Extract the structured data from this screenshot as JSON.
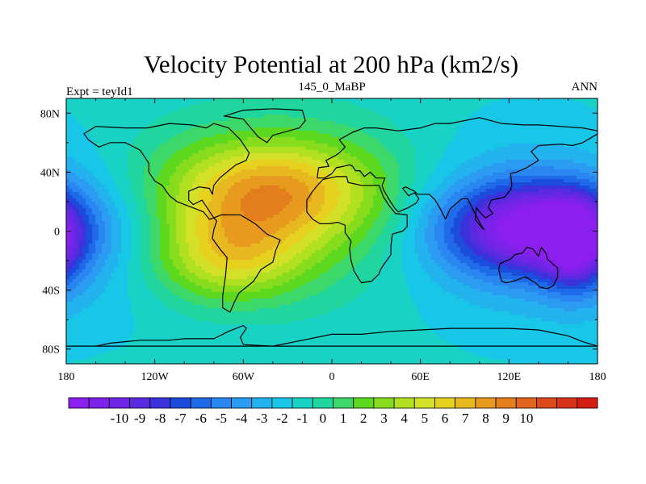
{
  "chart_data": {
    "type": "heatmap",
    "title": "Velocity Potential at 200 hPa (km2/s)",
    "left_string": "Expt = teyId1",
    "center_string": "145_0_MaBP",
    "right_string": "ANN",
    "xlim": [
      -180,
      180
    ],
    "ylim": [
      -90,
      90
    ],
    "x_ticks": [
      {
        "value": -180,
        "label": "180"
      },
      {
        "value": -120,
        "label": "120W"
      },
      {
        "value": -60,
        "label": "60W"
      },
      {
        "value": 0,
        "label": "0"
      },
      {
        "value": 60,
        "label": "60E"
      },
      {
        "value": 120,
        "label": "120E"
      },
      {
        "value": 180,
        "label": "180"
      }
    ],
    "y_ticks": [
      {
        "value": 80,
        "label": "80N"
      },
      {
        "value": 40,
        "label": "40N"
      },
      {
        "value": 0,
        "label": "0"
      },
      {
        "value": -40,
        "label": "40S"
      },
      {
        "value": -80,
        "label": "80S"
      }
    ],
    "field": {
      "background": 0.3,
      "centers": [
        {
          "lon": -45,
          "lat": 25,
          "amplitude": 7.5,
          "sigma_lon": 50,
          "sigma_lat": 24
        },
        {
          "lon": -70,
          "lat": -18,
          "amplitude": 6.5,
          "sigma_lon": 38,
          "sigma_lat": 22
        },
        {
          "lon": -55,
          "lat": 45,
          "amplitude": 1.8,
          "sigma_lon": 70,
          "sigma_lat": 30
        },
        {
          "lon": 10,
          "lat": 5,
          "amplitude": 1.5,
          "sigma_lon": 40,
          "sigma_lat": 40
        },
        {
          "lon": 135,
          "lat": 2,
          "amplitude": -9.8,
          "sigma_lon": 42,
          "sigma_lat": 22
        },
        {
          "lon": 150,
          "lat": 2,
          "amplitude": -2.5,
          "sigma_lon": 70,
          "sigma_lat": 45
        },
        {
          "lon": -195,
          "lat": -10,
          "amplitude": -6.0,
          "sigma_lon": 16,
          "sigma_lat": 22
        }
      ]
    },
    "colorbar": {
      "levels": [
        -10,
        -9,
        -8,
        -7,
        -6,
        -5,
        -4,
        -3,
        -2,
        -1,
        0,
        1,
        2,
        3,
        4,
        5,
        6,
        7,
        8,
        9,
        10
      ],
      "labels": [
        "-10",
        "-9",
        "-8",
        "-7",
        "-6",
        "-5",
        "-4",
        "-3",
        "-2",
        "-1",
        "0",
        "1",
        "2",
        "3",
        "4",
        "5",
        "6",
        "7",
        "8",
        "9",
        "10"
      ],
      "colors": [
        "#8a1ff0",
        "#7c22ea",
        "#6e25e5",
        "#5a2ae0",
        "#3c32dc",
        "#1c4cdc",
        "#1e6ae8",
        "#2a86f0",
        "#2c9cf2",
        "#22b2ee",
        "#18c6e8",
        "#18d2c6",
        "#20d69e",
        "#3cd86a",
        "#5cd81e",
        "#88dc1e",
        "#b0e020",
        "#d2e028",
        "#e6d21e",
        "#e8b820",
        "#e89a1e",
        "#e47e1c",
        "#e0641c",
        "#dc4a1a",
        "#d83218",
        "#d41e14"
      ]
    },
    "continents": [
      {
        "name": "North America",
        "points": [
          [
            -168,
            66
          ],
          [
            -160,
            71
          ],
          [
            -140,
            70
          ],
          [
            -125,
            70
          ],
          [
            -110,
            73
          ],
          [
            -95,
            72
          ],
          [
            -85,
            70
          ],
          [
            -80,
            73
          ],
          [
            -70,
            70
          ],
          [
            -62,
            62
          ],
          [
            -56,
            53
          ],
          [
            -58,
            48
          ],
          [
            -65,
            45
          ],
          [
            -70,
            41
          ],
          [
            -76,
            36
          ],
          [
            -80,
            31
          ],
          [
            -81,
            25
          ],
          [
            -83,
            29
          ],
          [
            -90,
            30
          ],
          [
            -97,
            27
          ],
          [
            -97,
            21
          ],
          [
            -94,
            18
          ],
          [
            -88,
            21
          ],
          [
            -84,
            15
          ],
          [
            -80,
            9
          ],
          [
            -83,
            8
          ],
          [
            -87,
            13
          ],
          [
            -92,
            15
          ],
          [
            -105,
            20
          ],
          [
            -110,
            24
          ],
          [
            -115,
            31
          ],
          [
            -120,
            34
          ],
          [
            -124,
            40
          ],
          [
            -124,
            46
          ],
          [
            -130,
            55
          ],
          [
            -140,
            60
          ],
          [
            -150,
            60
          ],
          [
            -158,
            57
          ],
          [
            -165,
            62
          ],
          [
            -168,
            66
          ]
        ]
      },
      {
        "name": "South America",
        "points": [
          [
            -80,
            9
          ],
          [
            -75,
            11
          ],
          [
            -62,
            11
          ],
          [
            -52,
            5
          ],
          [
            -44,
            -2
          ],
          [
            -35,
            -6
          ],
          [
            -38,
            -13
          ],
          [
            -40,
            -21
          ],
          [
            -48,
            -26
          ],
          [
            -53,
            -34
          ],
          [
            -58,
            -38
          ],
          [
            -63,
            -42
          ],
          [
            -66,
            -48
          ],
          [
            -69,
            -55
          ],
          [
            -74,
            -52
          ],
          [
            -74,
            -44
          ],
          [
            -72,
            -30
          ],
          [
            -71,
            -18
          ],
          [
            -76,
            -12
          ],
          [
            -81,
            -5
          ],
          [
            -80,
            1
          ],
          [
            -78,
            7
          ],
          [
            -80,
            9
          ]
        ]
      },
      {
        "name": "Greenland",
        "points": [
          [
            -73,
            78
          ],
          [
            -60,
            82
          ],
          [
            -40,
            83
          ],
          [
            -20,
            82
          ],
          [
            -18,
            75
          ],
          [
            -22,
            70
          ],
          [
            -40,
            65
          ],
          [
            -44,
            60
          ],
          [
            -50,
            64
          ],
          [
            -55,
            70
          ],
          [
            -60,
            76
          ],
          [
            -73,
            78
          ]
        ]
      },
      {
        "name": "Eurasia",
        "points": [
          [
            -10,
            36
          ],
          [
            -9,
            43
          ],
          [
            -2,
            44
          ],
          [
            -4,
            48
          ],
          [
            2,
            51
          ],
          [
            5,
            53
          ],
          [
            9,
            57
          ],
          [
            5,
            62
          ],
          [
            14,
            67
          ],
          [
            22,
            70
          ],
          [
            30,
            70
          ],
          [
            45,
            68
          ],
          [
            60,
            70
          ],
          [
            70,
            73
          ],
          [
            80,
            73
          ],
          [
            100,
            77
          ],
          [
            115,
            73
          ],
          [
            130,
            72
          ],
          [
            140,
            72
          ],
          [
            155,
            71
          ],
          [
            170,
            70
          ],
          [
            180,
            68
          ],
          [
            180,
            66
          ],
          [
            170,
            60
          ],
          [
            163,
            58
          ],
          [
            155,
            59
          ],
          [
            140,
            58
          ],
          [
            135,
            54
          ],
          [
            140,
            48
          ],
          [
            132,
            43
          ],
          [
            125,
            40
          ],
          [
            121,
            39
          ],
          [
            122,
            31
          ],
          [
            121,
            28
          ],
          [
            117,
            23
          ],
          [
            108,
            21
          ],
          [
            106,
            16
          ],
          [
            109,
            12
          ],
          [
            104,
            9
          ],
          [
            100,
            13
          ],
          [
            98,
            16
          ],
          [
            97,
            8
          ],
          [
            101,
            3
          ],
          [
            103,
            1
          ],
          [
            100,
            6
          ],
          [
            95,
            16
          ],
          [
            92,
            22
          ],
          [
            88,
            22
          ],
          [
            80,
            15
          ],
          [
            77,
            8
          ],
          [
            73,
            16
          ],
          [
            70,
            21
          ],
          [
            66,
            25
          ],
          [
            58,
            25
          ],
          [
            56,
            27
          ],
          [
            50,
            30
          ],
          [
            48,
            29
          ],
          [
            52,
            24
          ],
          [
            56,
            26
          ],
          [
            59,
            22
          ],
          [
            57,
            19
          ],
          [
            52,
            16
          ],
          [
            45,
            13
          ],
          [
            43,
            15
          ],
          [
            39,
            21
          ],
          [
            35,
            28
          ],
          [
            34,
            31
          ],
          [
            36,
            36
          ],
          [
            30,
            36
          ],
          [
            26,
            40
          ],
          [
            22,
            37
          ],
          [
            19,
            41
          ],
          [
            16,
            41
          ],
          [
            14,
            44
          ],
          [
            12,
            45
          ],
          [
            8,
            44
          ],
          [
            3,
            43
          ],
          [
            0,
            39
          ],
          [
            -5,
            36
          ],
          [
            -10,
            36
          ]
        ]
      },
      {
        "name": "Africa",
        "points": [
          [
            -17,
            21
          ],
          [
            -13,
            27
          ],
          [
            -9,
            32
          ],
          [
            -6,
            35
          ],
          [
            3,
            37
          ],
          [
            10,
            37
          ],
          [
            11,
            33
          ],
          [
            20,
            31
          ],
          [
            30,
            31
          ],
          [
            32,
            31
          ],
          [
            35,
            23
          ],
          [
            39,
            17
          ],
          [
            43,
            12
          ],
          [
            51,
            11
          ],
          [
            51,
            3
          ],
          [
            48,
            0
          ],
          [
            41,
            -2
          ],
          [
            40,
            -10
          ],
          [
            40,
            -16
          ],
          [
            35,
            -23
          ],
          [
            33,
            -26
          ],
          [
            32,
            -29
          ],
          [
            27,
            -34
          ],
          [
            20,
            -35
          ],
          [
            18,
            -32
          ],
          [
            15,
            -27
          ],
          [
            13,
            -20
          ],
          [
            12,
            -12
          ],
          [
            13,
            -7
          ],
          [
            9,
            -1
          ],
          [
            9,
            4
          ],
          [
            4,
            6
          ],
          [
            -2,
            5
          ],
          [
            -8,
            5
          ],
          [
            -13,
            8
          ],
          [
            -17,
            13
          ],
          [
            -17,
            21
          ]
        ]
      },
      {
        "name": "Australia",
        "points": [
          [
            114,
            -22
          ],
          [
            113,
            -26
          ],
          [
            115,
            -34
          ],
          [
            118,
            -35
          ],
          [
            123,
            -34
          ],
          [
            131,
            -31
          ],
          [
            138,
            -35
          ],
          [
            141,
            -38
          ],
          [
            146,
            -39
          ],
          [
            150,
            -37
          ],
          [
            153,
            -31
          ],
          [
            153,
            -25
          ],
          [
            146,
            -19
          ],
          [
            145,
            -15
          ],
          [
            142,
            -11
          ],
          [
            140,
            -17
          ],
          [
            136,
            -12
          ],
          [
            132,
            -11
          ],
          [
            129,
            -15
          ],
          [
            124,
            -16
          ],
          [
            121,
            -19
          ],
          [
            114,
            -22
          ]
        ]
      },
      {
        "name": "Antarctica",
        "points": [
          [
            -180,
            -78
          ],
          [
            -160,
            -78
          ],
          [
            -150,
            -76
          ],
          [
            -130,
            -74
          ],
          [
            -110,
            -74
          ],
          [
            -100,
            -73
          ],
          [
            -80,
            -73
          ],
          [
            -70,
            -68
          ],
          [
            -60,
            -64
          ],
          [
            -58,
            -66
          ],
          [
            -62,
            -72
          ],
          [
            -60,
            -77
          ],
          [
            -40,
            -78
          ],
          [
            -20,
            -74
          ],
          [
            0,
            -70
          ],
          [
            20,
            -70
          ],
          [
            40,
            -68
          ],
          [
            60,
            -67
          ],
          [
            80,
            -66
          ],
          [
            100,
            -66
          ],
          [
            120,
            -66
          ],
          [
            140,
            -67
          ],
          [
            160,
            -71
          ],
          [
            170,
            -75
          ],
          [
            180,
            -78
          ]
        ]
      }
    ]
  }
}
